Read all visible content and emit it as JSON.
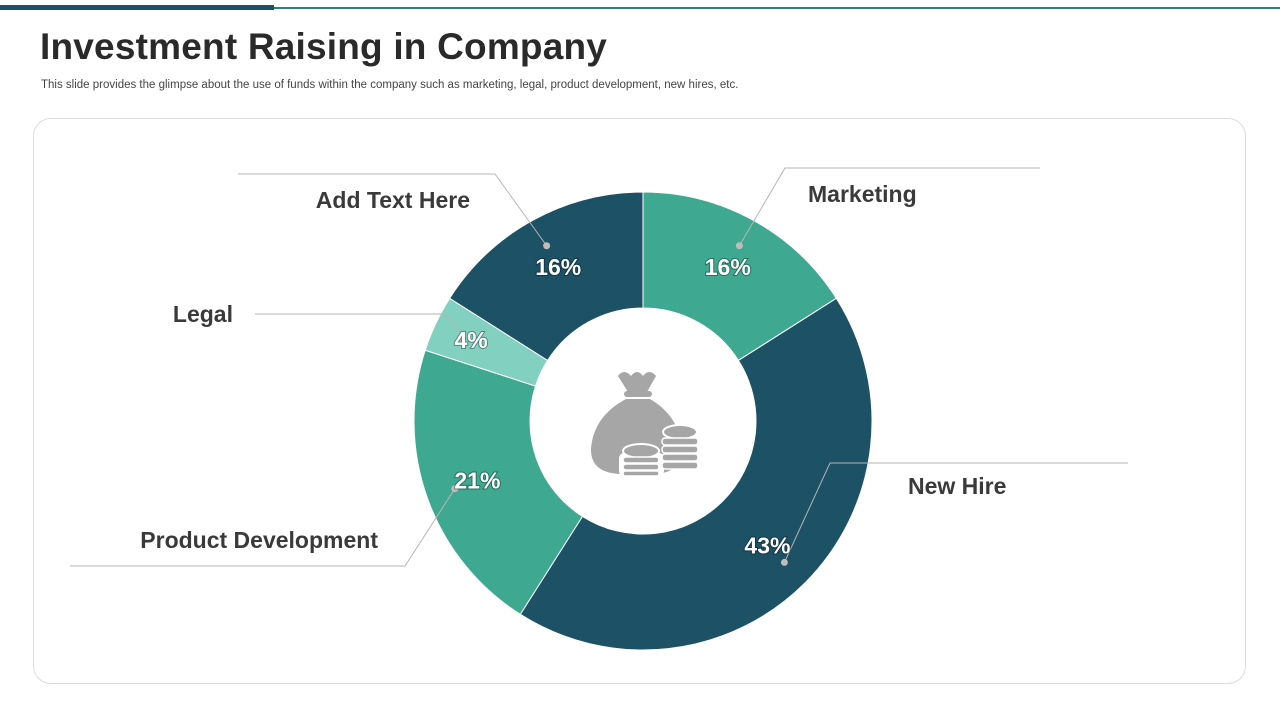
{
  "slide": {
    "title": "Investment Raising in Company",
    "subtitle": "This slide provides the glimpse about the use of funds within the company such as marketing, legal, product development, new hires, etc.",
    "colors": {
      "dark": "#1d5166",
      "teal": "#3fa890",
      "light": "#82d0c0",
      "accent_line": "#2e7d80",
      "icon": "#a6a6a6"
    },
    "center_icon": "money-bag-coins-icon"
  },
  "chart_data": {
    "type": "pie",
    "donut": true,
    "categories": [
      "Marketing",
      "New Hire",
      "Product Development",
      "Legal",
      "Add Text Here"
    ],
    "values": [
      16,
      43,
      21,
      4,
      16
    ],
    "value_labels": [
      "16%",
      "43%",
      "21%",
      "4%",
      "16%"
    ],
    "colors": [
      "#3fa890",
      "#1d5166",
      "#3fa890",
      "#82d0c0",
      "#1d5166"
    ],
    "unit": "%"
  }
}
